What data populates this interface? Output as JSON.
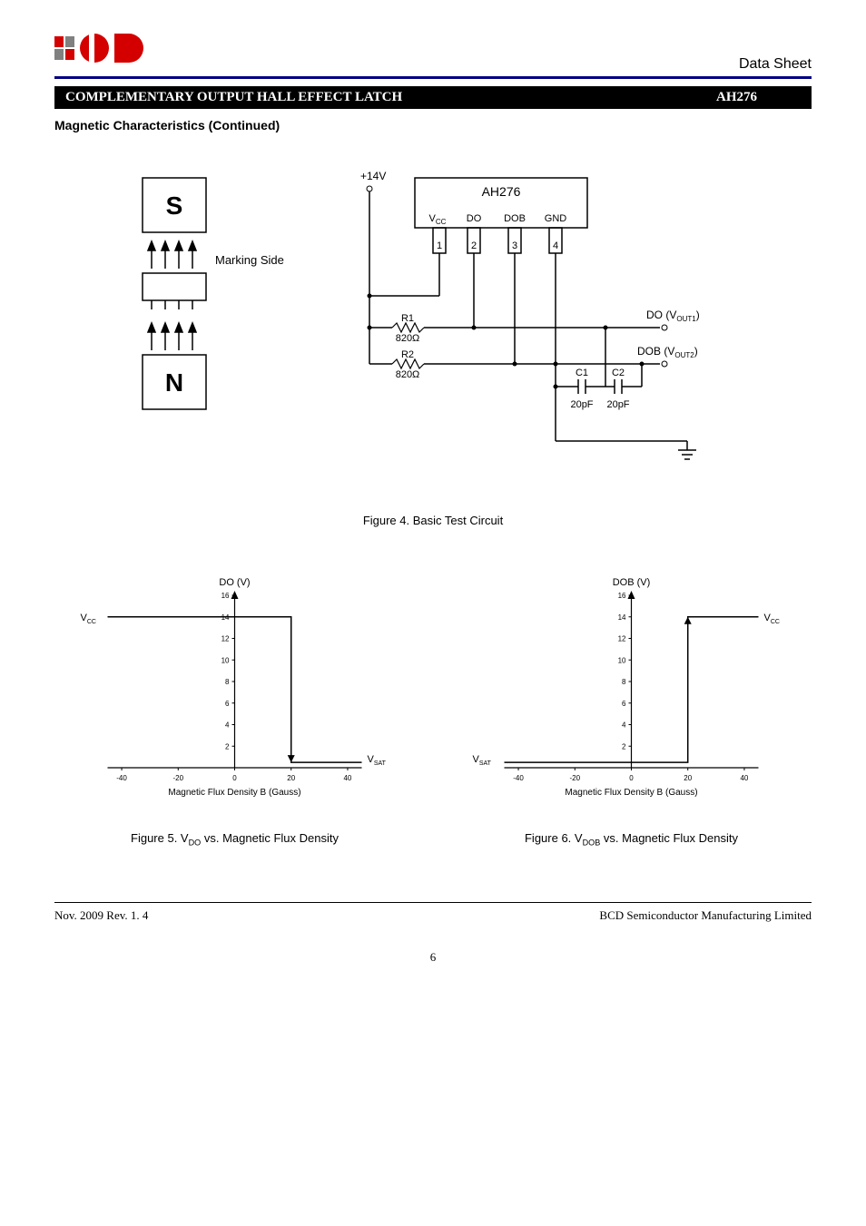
{
  "header": {
    "datasheet_label": "Data Sheet",
    "title_left": "COMPLEMENTARY OUTPUT HALL EFFECT LATCH",
    "title_right": "AH276"
  },
  "section_heading": "Magnetic Characteristics (Continued)",
  "figure4": {
    "caption": "Figure 4. Basic Test Circuit",
    "magnet": {
      "s_label": "S",
      "n_label": "N",
      "marking_side": "Marking Side",
      "colors": {
        "box_stroke": "#000000",
        "arrow_color": "#000000"
      }
    },
    "circuit": {
      "supply_label": "+14V",
      "chip_label": "AH276",
      "pin_labels": [
        "V",
        "DO",
        "DOB",
        "GND"
      ],
      "pin_sub": "CC",
      "pin_numbers": [
        "1",
        "2",
        "3",
        "4"
      ],
      "r1_label": "R1",
      "r1_value": "820Ω",
      "r2_label": "R2",
      "r2_value": "820Ω",
      "c1_label": "C1",
      "c2_label": "C2",
      "c1_value": "20pF",
      "c2_value": "20pF",
      "do_out_label": "DO (V",
      "do_out_sub": "OUT1",
      "do_out_close": ")",
      "dob_out_label": "DOB (V",
      "dob_out_sub": "OUT2",
      "dob_out_close": ")",
      "colors": {
        "wire": "#000000",
        "chip_stroke": "#000000"
      }
    }
  },
  "chart5": {
    "type": "step-line",
    "title": "DO (V)",
    "xlabel": "Magnetic Flux Density B (Gauss)",
    "caption_prefix": "Figure 5. V",
    "caption_sub": "DO",
    "caption_suffix": " vs. Magnetic Flux Density",
    "vcc_label": "V",
    "vcc_sub": "CC",
    "vsat_label": "V",
    "vsat_sub": "SAT",
    "xlim": [
      -45,
      45
    ],
    "xticks": [
      -40,
      -20,
      0,
      20,
      40
    ],
    "ylim": [
      0,
      16
    ],
    "yticks": [
      2,
      4,
      6,
      8,
      10,
      12,
      14,
      16
    ],
    "step_data": {
      "high_x_start": -45,
      "high_x_end": 20,
      "high_y": 14,
      "transition_x": 20,
      "low_x_end": 45,
      "low_y": 0.5
    },
    "colors": {
      "axis": "#000000",
      "line": "#000000",
      "bg": "#ffffff",
      "tick_fontsize": 8,
      "label_fontsize": 10
    }
  },
  "chart6": {
    "type": "step-line",
    "title": "DOB (V)",
    "xlabel": "Magnetic Flux Density B (Gauss)",
    "caption_prefix": "Figure 6. V",
    "caption_sub": "DOB",
    "caption_suffix": " vs. Magnetic Flux Density",
    "vcc_label": "V",
    "vcc_sub": "CC",
    "vsat_label": "V",
    "vsat_sub": "SAT",
    "xlim": [
      -45,
      45
    ],
    "xticks": [
      -40,
      -20,
      0,
      20,
      40
    ],
    "ylim": [
      0,
      16
    ],
    "yticks": [
      2,
      4,
      6,
      8,
      10,
      12,
      14,
      16
    ],
    "step_data": {
      "low_x_start": -45,
      "low_x_end": 20,
      "low_y": 0.5,
      "transition_x": 20,
      "high_x_end": 45,
      "high_y": 14
    },
    "colors": {
      "axis": "#000000",
      "line": "#000000",
      "bg": "#ffffff",
      "tick_fontsize": 8,
      "label_fontsize": 10
    }
  },
  "footer": {
    "left": "Nov. 2009  Rev. 1. 4",
    "right": "BCD Semiconductor Manufacturing Limited",
    "page": "6"
  },
  "palette": {
    "header_rule": "#000080",
    "title_bg": "#000000",
    "title_fg": "#ffffff",
    "logo_red": "#d40000",
    "logo_gray": "#808080"
  }
}
